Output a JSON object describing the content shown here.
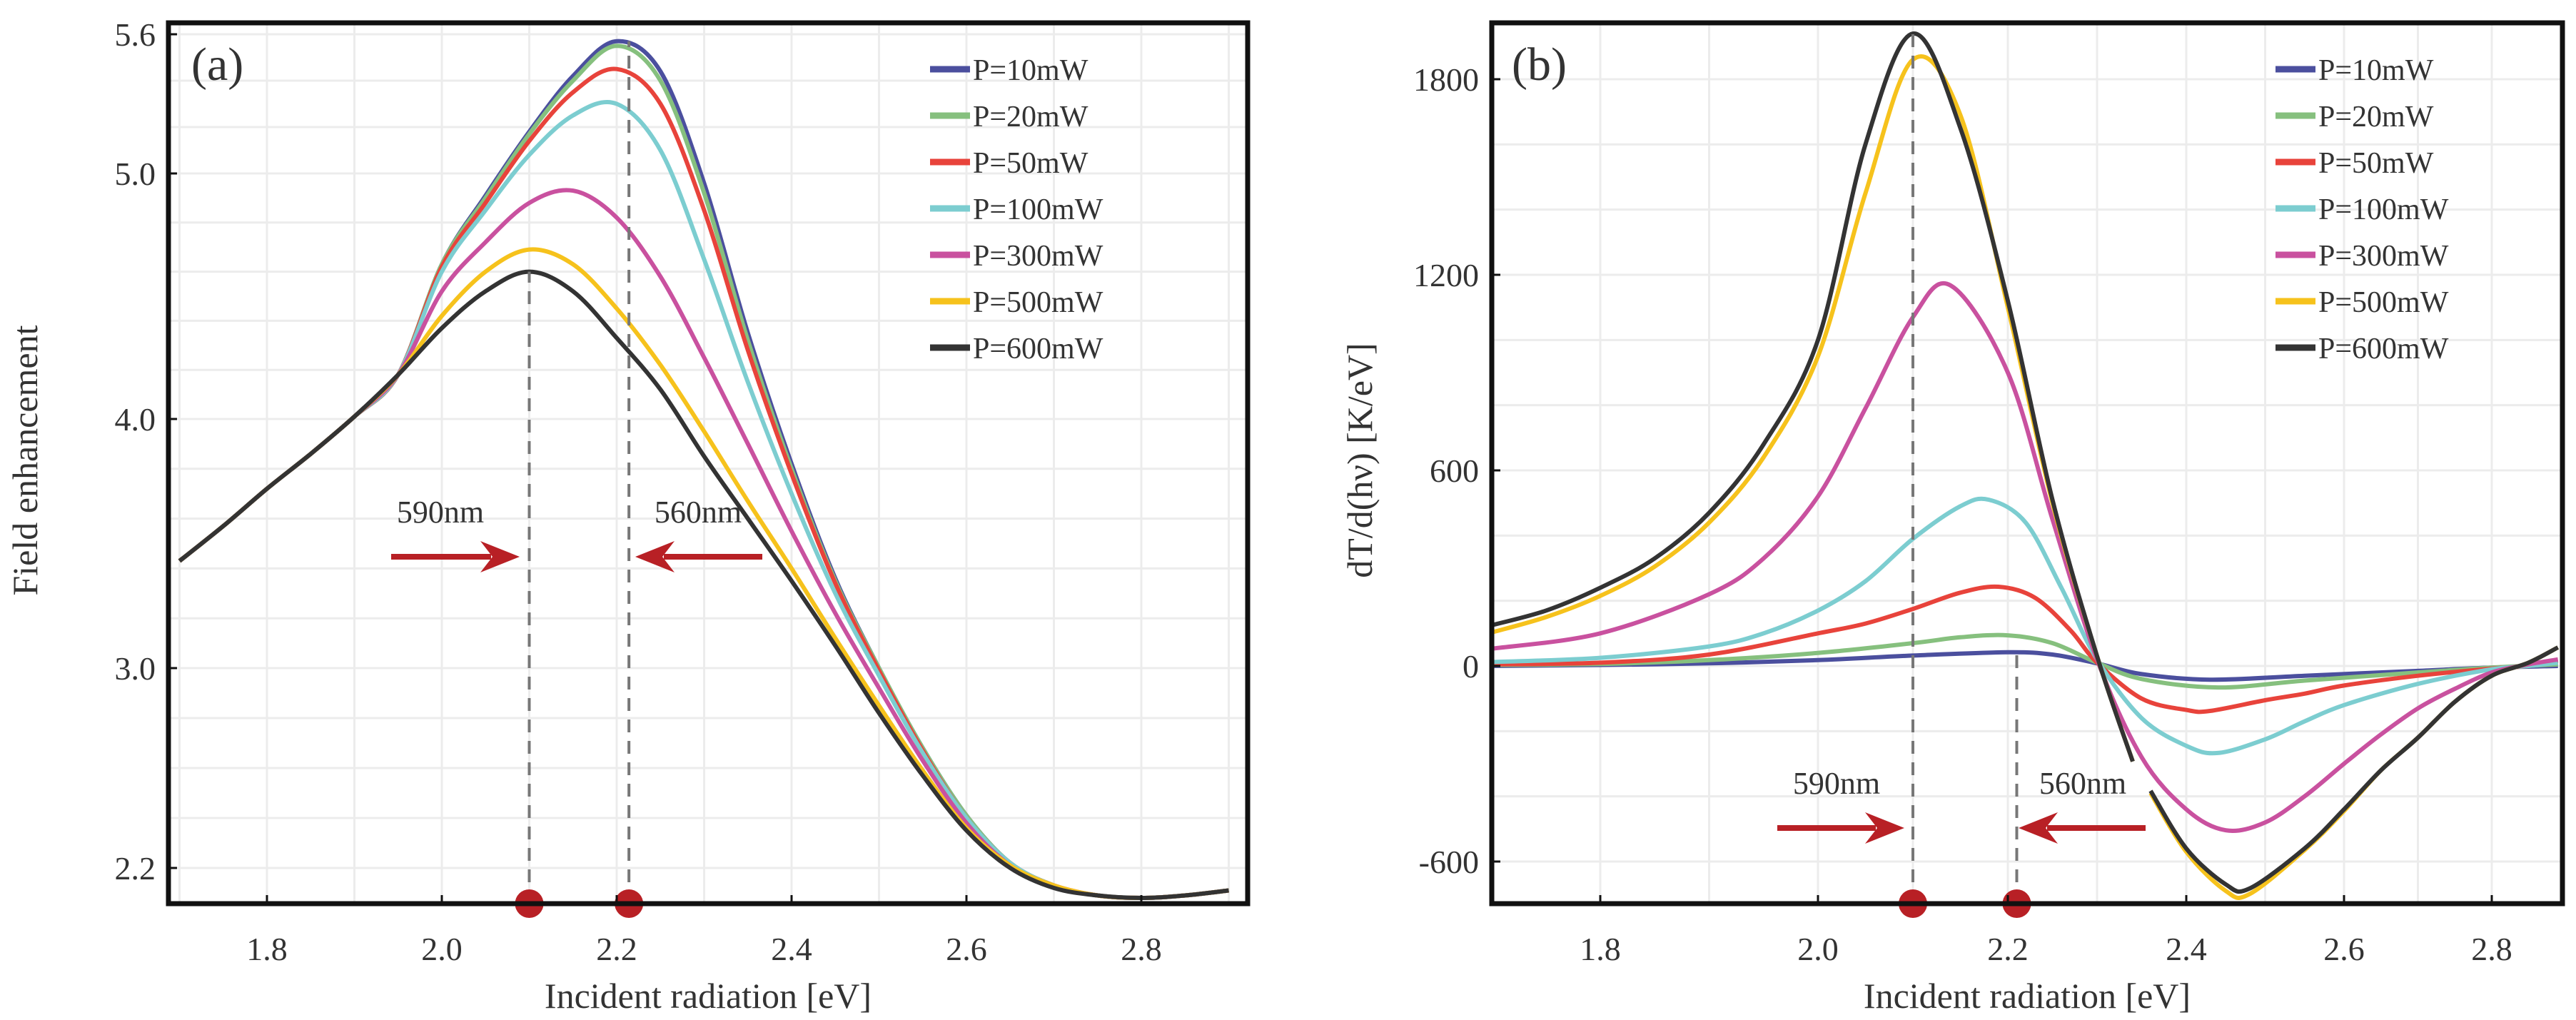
{
  "chart_data": [
    {
      "panel_label": "(a)",
      "type": "line",
      "xlabel": "Incident radiation [eV]",
      "ylabel": "Field enhancement",
      "xlim": [
        1.69,
        2.92
      ],
      "ylim": [
        2.04,
        5.65
      ],
      "xticks": [
        1.8,
        2.0,
        2.2,
        2.4,
        2.6,
        2.8
      ],
      "xtick_labels": [
        "1.8",
        "2.0",
        "2.2",
        "2.4",
        "2.6",
        "2.8"
      ],
      "yticks": [
        5.6,
        5.0,
        4.0,
        3.0,
        2.2
      ],
      "ytick_labels": [
        "5.6",
        "5.0",
        "4.0",
        "3.0",
        "2.2"
      ],
      "grid": true,
      "legend_position": "top-right",
      "x": [
        1.7,
        1.75,
        1.8,
        1.85,
        1.9,
        1.95,
        2.0,
        2.05,
        2.1,
        2.15,
        2.2,
        2.25,
        2.3,
        2.35,
        2.4,
        2.45,
        2.5,
        2.55,
        2.6,
        2.65,
        2.7,
        2.75,
        2.8,
        2.85,
        2.9
      ],
      "series": [
        {
          "name": "P=10mW",
          "color": "#4b4f9e",
          "values": [
            3.43,
            3.57,
            3.72,
            3.86,
            4.01,
            4.18,
            4.63,
            4.91,
            5.18,
            5.42,
            5.57,
            5.44,
            4.96,
            4.35,
            3.82,
            3.36,
            3.0,
            2.68,
            2.41,
            2.22,
            2.13,
            2.09,
            2.08,
            2.09,
            2.11
          ]
        },
        {
          "name": "P=20mW",
          "color": "#86c07e",
          "values": [
            3.43,
            3.57,
            3.72,
            3.86,
            4.01,
            4.18,
            4.63,
            4.9,
            5.17,
            5.4,
            5.55,
            5.4,
            4.92,
            4.32,
            3.8,
            3.35,
            3.0,
            2.68,
            2.41,
            2.22,
            2.13,
            2.09,
            2.08,
            2.09,
            2.11
          ]
        },
        {
          "name": "P=50mW",
          "color": "#e8433b",
          "values": [
            3.43,
            3.57,
            3.72,
            3.86,
            4.01,
            4.18,
            4.62,
            4.88,
            5.14,
            5.35,
            5.45,
            5.3,
            4.85,
            4.28,
            3.78,
            3.34,
            2.99,
            2.67,
            2.4,
            2.22,
            2.13,
            2.09,
            2.08,
            2.09,
            2.11
          ]
        },
        {
          "name": "P=100mW",
          "color": "#7ccdd0",
          "values": [
            3.43,
            3.57,
            3.72,
            3.86,
            4.01,
            4.18,
            4.6,
            4.85,
            5.08,
            5.25,
            5.3,
            5.1,
            4.65,
            4.15,
            3.7,
            3.3,
            2.97,
            2.66,
            2.4,
            2.22,
            2.13,
            2.09,
            2.08,
            2.09,
            2.11
          ]
        },
        {
          "name": "P=300mW",
          "color": "#c9519f",
          "values": [
            3.43,
            3.57,
            3.72,
            3.86,
            4.01,
            4.18,
            4.52,
            4.72,
            4.88,
            4.93,
            4.82,
            4.58,
            4.25,
            3.9,
            3.55,
            3.22,
            2.92,
            2.63,
            2.38,
            2.21,
            2.13,
            2.09,
            2.08,
            2.09,
            2.11
          ]
        },
        {
          "name": "P=500mW",
          "color": "#f6c21c",
          "values": [
            3.43,
            3.57,
            3.72,
            3.86,
            4.01,
            4.18,
            4.42,
            4.6,
            4.69,
            4.63,
            4.45,
            4.22,
            3.95,
            3.67,
            3.4,
            3.12,
            2.85,
            2.59,
            2.36,
            2.21,
            2.13,
            2.09,
            2.08,
            2.09,
            2.11
          ]
        },
        {
          "name": "P=600mW",
          "color": "#333333",
          "values": [
            3.43,
            3.57,
            3.72,
            3.86,
            4.01,
            4.18,
            4.37,
            4.52,
            4.6,
            4.52,
            4.33,
            4.12,
            3.85,
            3.6,
            3.35,
            3.09,
            2.82,
            2.57,
            2.35,
            2.2,
            2.12,
            2.09,
            2.08,
            2.09,
            2.11
          ]
        }
      ],
      "markers": [
        {
          "label": "590nm",
          "x": 2.1,
          "y_top": 4.6,
          "arrow_direction": "right"
        },
        {
          "label": "560nm",
          "x": 2.214,
          "y_top": 5.57,
          "arrow_direction": "left"
        }
      ],
      "marker_color": "#b82025"
    },
    {
      "panel_label": "(b)",
      "type": "line",
      "xlabel": "Incident radiation [eV]",
      "ylabel": "dT/d(hν) [K/eV]",
      "xlim": [
        1.7,
        2.9
      ],
      "ylim": [
        -720,
        2020
      ],
      "xticks": [
        1.8,
        2.0,
        2.2,
        2.4,
        2.6,
        2.8
      ],
      "xtick_labels": [
        "1.8",
        "2.0",
        "2.2",
        "2.4",
        "2.6",
        "2.8"
      ],
      "yticks": [
        1800,
        1200,
        600,
        0,
        -600
      ],
      "ytick_labels": [
        "1800",
        "1200",
        "600",
        "0",
        "-600"
      ],
      "grid": true,
      "legend_position": "top-right",
      "series": [
        {
          "name": "P=10mW",
          "color": "#4b4f9e",
          "points": [
            [
              1.7,
              0
            ],
            [
              1.8,
              3
            ],
            [
              1.9,
              8
            ],
            [
              2.0,
              18
            ],
            [
              2.1,
              32
            ],
            [
              2.2,
              42
            ],
            [
              2.25,
              35
            ],
            [
              2.3,
              8
            ],
            [
              2.35,
              -25
            ],
            [
              2.43,
              -42
            ],
            [
              2.55,
              -30
            ],
            [
              2.7,
              -15
            ],
            [
              2.8,
              -5
            ],
            [
              2.89,
              0
            ]
          ]
        },
        {
          "name": "P=20mW",
          "color": "#86c07e",
          "points": [
            [
              1.7,
              3
            ],
            [
              1.8,
              6
            ],
            [
              1.9,
              18
            ],
            [
              2.0,
              40
            ],
            [
              2.1,
              70
            ],
            [
              2.15,
              88
            ],
            [
              2.2,
              94
            ],
            [
              2.25,
              70
            ],
            [
              2.3,
              10
            ],
            [
              2.35,
              -40
            ],
            [
              2.44,
              -66
            ],
            [
              2.55,
              -45
            ],
            [
              2.7,
              -20
            ],
            [
              2.8,
              -5
            ],
            [
              2.89,
              5
            ]
          ]
        },
        {
          "name": "P=50mW",
          "color": "#e8433b",
          "points": [
            [
              1.7,
              5
            ],
            [
              1.8,
              10
            ],
            [
              1.9,
              35
            ],
            [
              2.0,
              100
            ],
            [
              2.05,
              130
            ],
            [
              2.1,
              175
            ],
            [
              2.15,
              225
            ],
            [
              2.19,
              243
            ],
            [
              2.23,
              210
            ],
            [
              2.27,
              110
            ],
            [
              2.3,
              10
            ],
            [
              2.35,
              -100
            ],
            [
              2.4,
              -135
            ],
            [
              2.43,
              -138
            ],
            [
              2.5,
              -105
            ],
            [
              2.55,
              -85
            ],
            [
              2.6,
              -60
            ],
            [
              2.7,
              -30
            ],
            [
              2.8,
              -8
            ],
            [
              2.85,
              0
            ],
            [
              2.89,
              15
            ]
          ]
        },
        {
          "name": "P=100mW",
          "color": "#7ccdd0",
          "points": [
            [
              1.7,
              12
            ],
            [
              1.8,
              25
            ],
            [
              1.9,
              60
            ],
            [
              1.95,
              100
            ],
            [
              2.0,
              170
            ],
            [
              2.05,
              260
            ],
            [
              2.1,
              390
            ],
            [
              2.15,
              490
            ],
            [
              2.18,
              510
            ],
            [
              2.22,
              440
            ],
            [
              2.26,
              240
            ],
            [
              2.3,
              20
            ],
            [
              2.35,
              -160
            ],
            [
              2.4,
              -245
            ],
            [
              2.44,
              -267
            ],
            [
              2.5,
              -225
            ],
            [
              2.55,
              -170
            ],
            [
              2.6,
              -120
            ],
            [
              2.7,
              -55
            ],
            [
              2.8,
              -10
            ],
            [
              2.85,
              0
            ],
            [
              2.89,
              10
            ]
          ]
        },
        {
          "name": "P=300mW",
          "color": "#c9519f",
          "points": [
            [
              1.7,
              53
            ],
            [
              1.8,
              100
            ],
            [
              1.9,
              220
            ],
            [
              1.95,
              330
            ],
            [
              2.0,
              520
            ],
            [
              2.05,
              790
            ],
            [
              2.1,
              1070
            ],
            [
              2.14,
              1167
            ],
            [
              2.2,
              900
            ],
            [
              2.25,
              450
            ],
            [
              2.3,
              20
            ],
            [
              2.35,
              -280
            ],
            [
              2.4,
              -440
            ],
            [
              2.45,
              -504
            ],
            [
              2.5,
              -480
            ],
            [
              2.55,
              -400
            ],
            [
              2.6,
              -300
            ],
            [
              2.65,
              -210
            ],
            [
              2.7,
              -130
            ],
            [
              2.75,
              -70
            ],
            [
              2.8,
              -20
            ],
            [
              2.85,
              5
            ],
            [
              2.89,
              20
            ]
          ]
        },
        {
          "name": "P=500mW",
          "color": "#f6c21c",
          "points": [
            [
              1.7,
              103
            ],
            [
              1.75,
              150
            ],
            [
              1.8,
              215
            ],
            [
              1.85,
              305
            ],
            [
              1.9,
              440
            ],
            [
              1.95,
              640
            ],
            [
              2.0,
              950
            ],
            [
              2.05,
              1450
            ],
            [
              2.1,
              1860
            ],
            [
              2.15,
              1690
            ],
            [
              2.2,
              1100
            ],
            [
              2.25,
              500
            ],
            [
              2.3,
              30
            ],
            [
              2.34,
              -293
            ],
            null,
            [
              2.36,
              -390
            ],
            [
              2.4,
              -570
            ],
            [
              2.45,
              -690
            ],
            [
              2.48,
              -700
            ],
            [
              2.55,
              -565
            ],
            [
              2.6,
              -445
            ],
            [
              2.65,
              -320
            ],
            [
              2.7,
              -220
            ],
            [
              2.75,
              -110
            ],
            [
              2.8,
              -30
            ],
            [
              2.85,
              10
            ],
            [
              2.89,
              57
            ]
          ]
        },
        {
          "name": "P=600mW",
          "color": "#333333",
          "points": [
            [
              1.7,
              125
            ],
            [
              1.75,
              170
            ],
            [
              1.8,
              240
            ],
            [
              1.85,
              330
            ],
            [
              1.9,
              470
            ],
            [
              1.95,
              680
            ],
            [
              2.0,
              1000
            ],
            [
              2.05,
              1600
            ],
            [
              2.1,
              1940
            ],
            [
              2.15,
              1650
            ],
            [
              2.2,
              1120
            ],
            [
              2.25,
              510
            ],
            [
              2.3,
              30
            ],
            [
              2.34,
              -293
            ],
            null,
            [
              2.36,
              -383
            ],
            [
              2.4,
              -560
            ],
            [
              2.45,
              -670
            ],
            [
              2.48,
              -683
            ],
            [
              2.55,
              -560
            ],
            [
              2.6,
              -440
            ],
            [
              2.65,
              -320
            ],
            [
              2.7,
              -220
            ],
            [
              2.75,
              -110
            ],
            [
              2.8,
              -30
            ],
            [
              2.85,
              10
            ],
            [
              2.89,
              57
            ]
          ]
        }
      ],
      "markers": [
        {
          "label": "590nm",
          "x": 2.1,
          "y_top": 1942,
          "arrow_direction": "right"
        },
        {
          "label": "560nm",
          "x": 2.21,
          "y_top": 42,
          "arrow_direction": "left"
        }
      ],
      "marker_color": "#b82025"
    }
  ]
}
